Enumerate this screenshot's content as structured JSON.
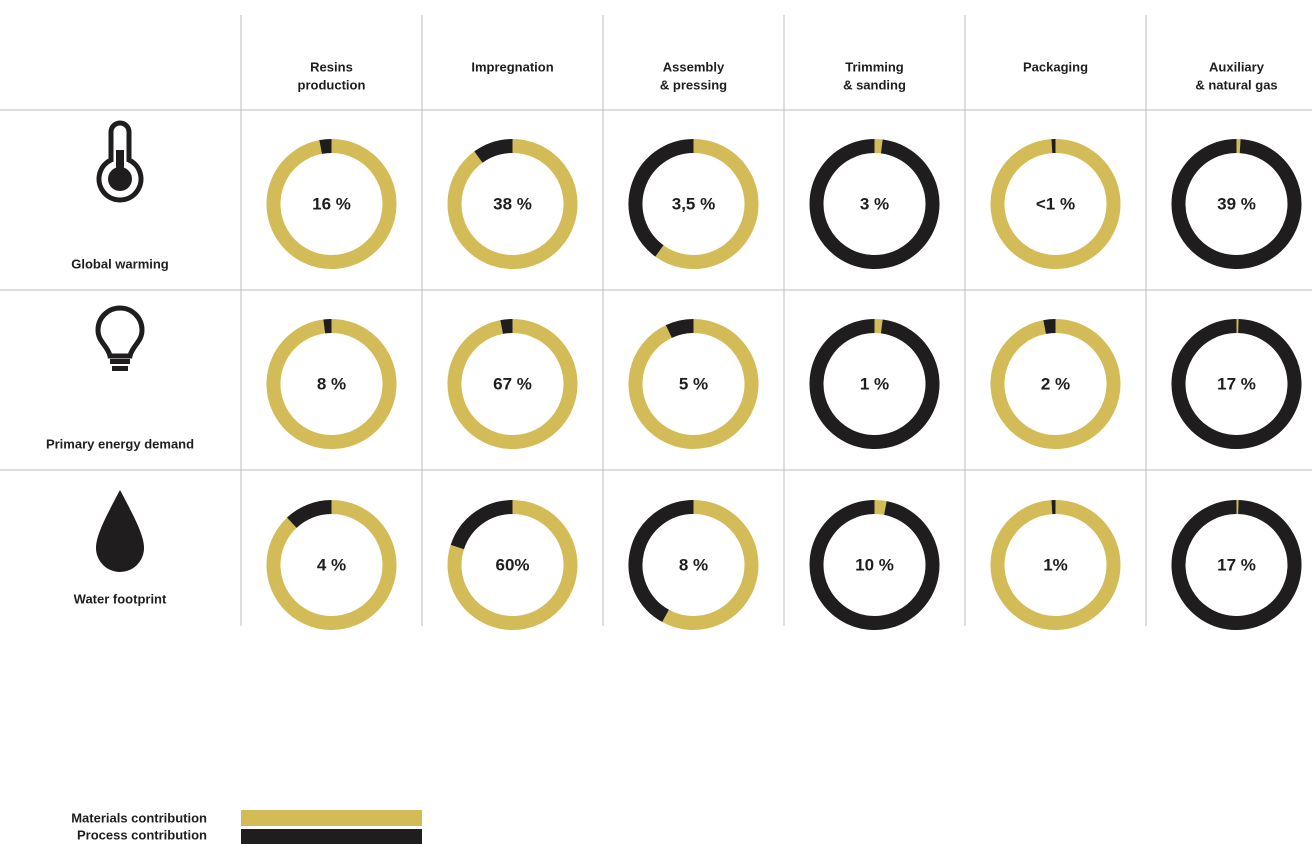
{
  "columns": [
    [
      "Resins",
      "production"
    ],
    [
      "Impregnation"
    ],
    [
      "Assembly",
      "& pressing"
    ],
    [
      "Trimming",
      "& sanding"
    ],
    [
      "Packaging"
    ],
    [
      "Auxiliary",
      "& natural gas"
    ]
  ],
  "rows": [
    {
      "name": "Global warming",
      "cells": [
        {
          "label": "16 %",
          "materials": 97,
          "process": 3
        },
        {
          "label": "38 %",
          "materials": 90,
          "process": 10
        },
        {
          "label": "3,5 %",
          "materials": 60,
          "process": 40
        },
        {
          "label": "3 %",
          "materials": 2,
          "process": 98
        },
        {
          "label": "<1 %",
          "materials": 99,
          "process": 1
        },
        {
          "label": "39 %",
          "materials": 1,
          "process": 99
        }
      ]
    },
    {
      "name": "Primary energy demand",
      "cells": [
        {
          "label": "8 %",
          "materials": 98,
          "process": 2
        },
        {
          "label": "67 %",
          "materials": 97,
          "process": 3
        },
        {
          "label": "5 %",
          "materials": 93,
          "process": 7
        },
        {
          "label": "1 %",
          "materials": 2,
          "process": 98
        },
        {
          "label": "2 %",
          "materials": 97,
          "process": 3
        },
        {
          "label": "17 %",
          "materials": 0.5,
          "process": 99.5
        }
      ]
    },
    {
      "name": "Water footprint",
      "cells": [
        {
          "label": "4 %",
          "materials": 88,
          "process": 12
        },
        {
          "label": "60%",
          "materials": 80,
          "process": 20
        },
        {
          "label": "8 %",
          "materials": 58,
          "process": 42
        },
        {
          "label": "10 %",
          "materials": 3,
          "process": 97
        },
        {
          "label": "1%",
          "materials": 99,
          "process": 1
        },
        {
          "label": "17 %",
          "materials": 0.5,
          "process": 99.5
        }
      ]
    }
  ],
  "legend": {
    "materials": {
      "label": "Materials contribution",
      "color": "#d3bc58"
    },
    "process": {
      "label": "Process contribution",
      "color": "#201d1e"
    }
  }
}
